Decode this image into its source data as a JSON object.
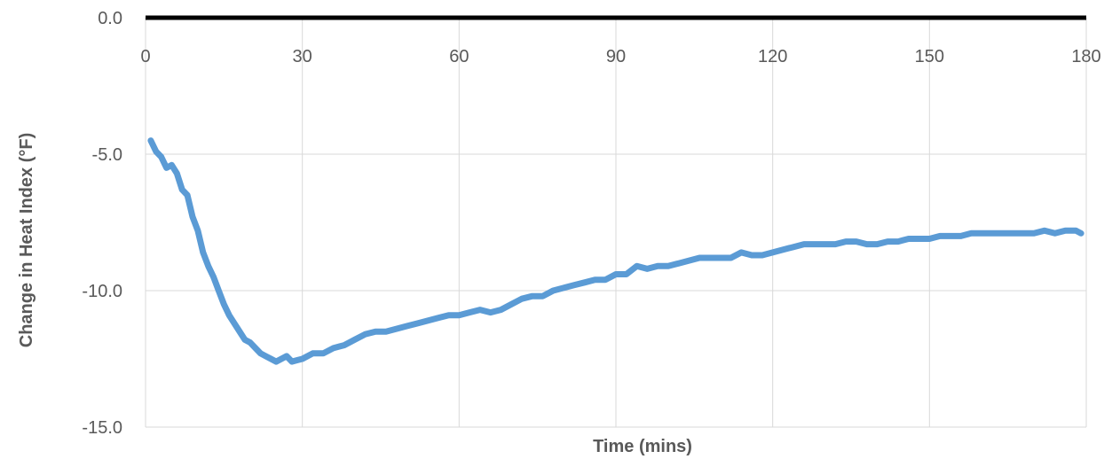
{
  "chart_data": {
    "type": "line",
    "title": "",
    "xlabel": "Time (mins)",
    "ylabel": "Change in Heat Index (°F)",
    "xlim": [
      0,
      180
    ],
    "ylim": [
      -15,
      0
    ],
    "x_ticks": [
      0,
      30,
      60,
      90,
      120,
      150,
      180
    ],
    "x_tick_labels": [
      "0",
      "30",
      "60",
      "90",
      "120",
      "150",
      "180"
    ],
    "y_ticks": [
      0,
      -5,
      -10,
      -15
    ],
    "y_tick_labels": [
      "0.0",
      "-5.0",
      "-10.0",
      "-15.0"
    ],
    "x_axis_position": "top",
    "grid": true,
    "legend": "none",
    "colors": {
      "series": "#5b9bd5",
      "zero_line": "#000000",
      "grid": "#d9d9d9",
      "text": "#595959"
    },
    "series": [
      {
        "x": [
          1,
          2,
          3,
          4,
          5,
          6,
          7,
          8,
          9,
          10,
          11,
          12,
          13,
          14,
          15,
          16,
          17,
          18,
          19,
          20,
          21,
          22,
          23,
          24,
          25,
          26,
          27,
          28,
          29,
          30,
          32,
          34,
          36,
          38,
          40,
          42,
          44,
          46,
          48,
          50,
          52,
          54,
          56,
          58,
          60,
          62,
          64,
          66,
          68,
          70,
          72,
          74,
          76,
          78,
          80,
          82,
          84,
          86,
          88,
          90,
          92,
          94,
          96,
          98,
          100,
          102,
          104,
          106,
          108,
          110,
          112,
          114,
          116,
          118,
          120,
          122,
          124,
          126,
          128,
          130,
          132,
          134,
          136,
          138,
          140,
          142,
          144,
          146,
          148,
          150,
          152,
          154,
          156,
          158,
          160,
          162,
          164,
          166,
          168,
          170,
          172,
          174,
          176,
          178,
          179
        ],
        "values": [
          -4.5,
          -4.9,
          -5.1,
          -5.5,
          -5.4,
          -5.7,
          -6.3,
          -6.5,
          -7.3,
          -7.8,
          -8.6,
          -9.1,
          -9.5,
          -10.0,
          -10.5,
          -10.9,
          -11.2,
          -11.5,
          -11.8,
          -11.9,
          -12.1,
          -12.3,
          -12.4,
          -12.5,
          -12.6,
          -12.5,
          -12.4,
          -12.6,
          -12.55,
          -12.5,
          -12.3,
          -12.3,
          -12.1,
          -12.0,
          -11.8,
          -11.6,
          -11.5,
          -11.5,
          -11.4,
          -11.3,
          -11.2,
          -11.1,
          -11.0,
          -10.9,
          -10.9,
          -10.8,
          -10.7,
          -10.8,
          -10.7,
          -10.5,
          -10.3,
          -10.2,
          -10.2,
          -10.0,
          -9.9,
          -9.8,
          -9.7,
          -9.6,
          -9.6,
          -9.4,
          -9.4,
          -9.1,
          -9.2,
          -9.1,
          -9.1,
          -9.0,
          -8.9,
          -8.8,
          -8.8,
          -8.8,
          -8.8,
          -8.6,
          -8.7,
          -8.7,
          -8.6,
          -8.5,
          -8.4,
          -8.3,
          -8.3,
          -8.3,
          -8.3,
          -8.2,
          -8.2,
          -8.3,
          -8.3,
          -8.2,
          -8.2,
          -8.1,
          -8.1,
          -8.1,
          -8.0,
          -8.0,
          -8.0,
          -7.9,
          -7.9,
          -7.9,
          -7.9,
          -7.9,
          -7.9,
          -7.9,
          -7.8,
          -7.9,
          -7.8,
          -7.8,
          -7.9
        ]
      }
    ]
  }
}
